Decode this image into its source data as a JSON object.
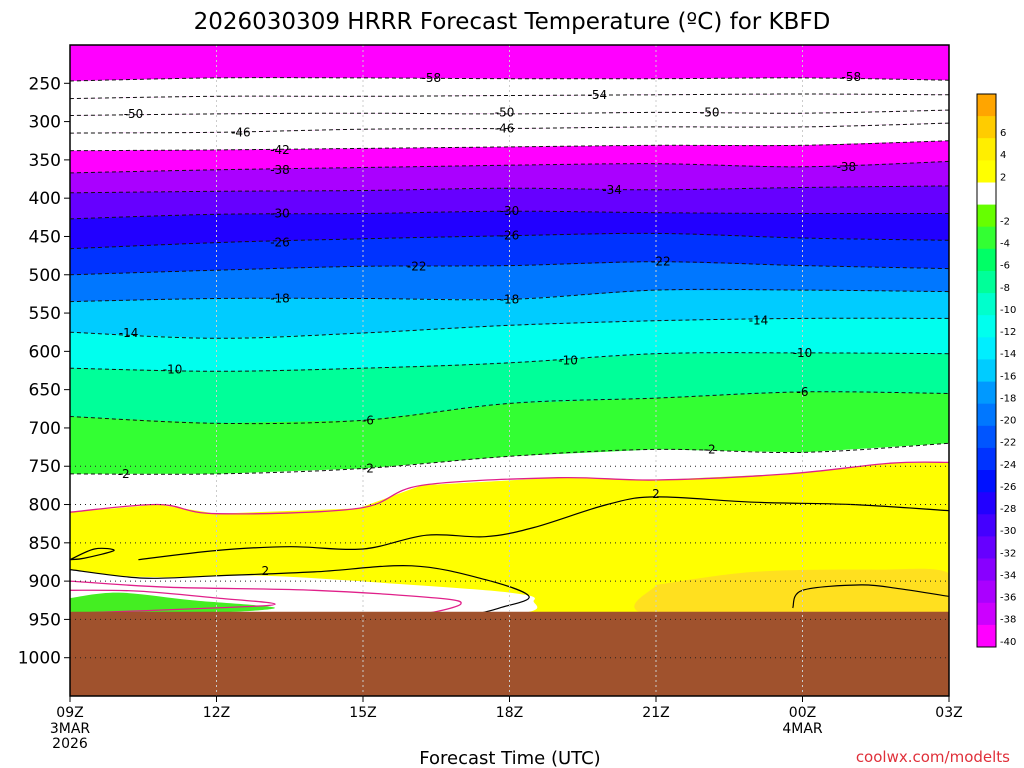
{
  "chart_data": {
    "type": "heatmap",
    "title": "2026030309 HRRR Forecast Temperature (ºC) for KBFD",
    "xlabel": "Forecast Time (UTC)",
    "ylabel": "",
    "credit": "coolwx.com/modelts",
    "credit_color": "#e0303a",
    "x_ticks": [
      {
        "hour": 0,
        "label": "09Z",
        "sub": [
          "3MAR",
          "2026"
        ]
      },
      {
        "hour": 3,
        "label": "12Z",
        "sub": []
      },
      {
        "hour": 6,
        "label": "15Z",
        "sub": []
      },
      {
        "hour": 9,
        "label": "18Z",
        "sub": []
      },
      {
        "hour": 12,
        "label": "21Z",
        "sub": []
      },
      {
        "hour": 15,
        "label": "00Z",
        "sub": [
          "4MAR"
        ]
      },
      {
        "hour": 18,
        "label": "03Z",
        "sub": []
      }
    ],
    "xlim": [
      0,
      18
    ],
    "y_ticks": [
      "250",
      "300",
      "350",
      "400",
      "450",
      "500",
      "550",
      "600",
      "650",
      "700",
      "750",
      "800",
      "850",
      "900",
      "950",
      "1000"
    ],
    "ylim": [
      200,
      1050
    ],
    "ground_pressure": 940,
    "ground_color": "#a0522d",
    "levels": [
      {
        "label": "",
        "color": "#ffa500"
      },
      {
        "label": "6",
        "color": "#ffcc00"
      },
      {
        "label": "4",
        "color": "#ffee00"
      },
      {
        "label": "2",
        "color": "#ffff00"
      },
      {
        "label": "",
        "color": "#ffffff"
      },
      {
        "label": "-2",
        "color": "#66ff00"
      },
      {
        "label": "-4",
        "color": "#33ff33"
      },
      {
        "label": "-6",
        "color": "#00ff66"
      },
      {
        "label": "-8",
        "color": "#00ff99"
      },
      {
        "label": "-10",
        "color": "#00ffcc"
      },
      {
        "label": "-12",
        "color": "#00ffee"
      },
      {
        "label": "-14",
        "color": "#00eeff"
      },
      {
        "label": "-16",
        "color": "#00ccff"
      },
      {
        "label": "-18",
        "color": "#0099ff"
      },
      {
        "label": "-20",
        "color": "#0077ff"
      },
      {
        "label": "-22",
        "color": "#0055ff"
      },
      {
        "label": "-24",
        "color": "#0033ff"
      },
      {
        "label": "-26",
        "color": "#0011ff"
      },
      {
        "label": "-28",
        "color": "#2200ff"
      },
      {
        "label": "-30",
        "color": "#4400ff"
      },
      {
        "label": "-32",
        "color": "#6600ff"
      },
      {
        "label": "-34",
        "color": "#8800ff"
      },
      {
        "label": "-36",
        "color": "#aa00ff"
      },
      {
        "label": "-38",
        "color": "#cc00ff"
      },
      {
        "label": "-40",
        "color": "#ff00ff"
      }
    ],
    "isotherms": [
      {
        "value": -58,
        "hour": [
          0,
          3,
          6,
          9,
          12,
          15,
          18
        ],
        "pressure": [
          247,
          243,
          243,
          244,
          244,
          243,
          246
        ]
      },
      {
        "value": -54,
        "hour": [
          0,
          3,
          6,
          9,
          12,
          15,
          18
        ],
        "pressure": [
          270,
          267,
          267,
          266,
          265,
          264,
          265
        ]
      },
      {
        "value": -50,
        "hour": [
          0,
          3,
          6,
          9,
          12,
          15,
          18
        ],
        "pressure": [
          292,
          290,
          289,
          290,
          288,
          289,
          285
        ]
      },
      {
        "value": -46,
        "hour": [
          0,
          3,
          6,
          9,
          12,
          15,
          18
        ],
        "pressure": [
          315,
          314,
          310,
          309,
          307,
          307,
          302
        ]
      },
      {
        "value": -42,
        "hour": [
          0,
          3,
          6,
          9,
          12,
          15,
          18
        ],
        "pressure": [
          338,
          337,
          335,
          333,
          331,
          331,
          325
        ]
      },
      {
        "value": -38,
        "hour": [
          0,
          3,
          6,
          9,
          12,
          15,
          18
        ],
        "pressure": [
          367,
          363,
          360,
          357,
          355,
          359,
          352
        ]
      },
      {
        "value": -34,
        "hour": [
          0,
          3,
          6,
          9,
          12,
          15,
          18
        ],
        "pressure": [
          393,
          391,
          390,
          387,
          389,
          386,
          384
        ]
      },
      {
        "value": -30,
        "hour": [
          0,
          3,
          6,
          9,
          12,
          15,
          18
        ],
        "pressure": [
          427,
          421,
          420,
          417,
          419,
          420,
          420
        ]
      },
      {
        "value": -26,
        "hour": [
          0,
          3,
          6,
          9,
          12,
          15,
          18
        ],
        "pressure": [
          466,
          458,
          453,
          449,
          446,
          452,
          455
        ]
      },
      {
        "value": -22,
        "hour": [
          0,
          3,
          6,
          9,
          12,
          15,
          18
        ],
        "pressure": [
          500,
          494,
          489,
          488,
          483,
          488,
          492
        ]
      },
      {
        "value": -18,
        "hour": [
          0,
          3,
          6,
          9,
          12,
          15,
          18
        ],
        "pressure": [
          535,
          531,
          531,
          532,
          520,
          520,
          522
        ]
      },
      {
        "value": -14,
        "hour": [
          0,
          3,
          6,
          9,
          12,
          15,
          18
        ],
        "pressure": [
          575,
          583,
          576,
          566,
          560,
          557,
          557
        ]
      },
      {
        "value": -10,
        "hour": [
          0,
          3,
          6,
          9,
          12,
          15,
          18
        ],
        "pressure": [
          622,
          626,
          622,
          615,
          603,
          602,
          603
        ]
      },
      {
        "value": -6,
        "hour": [
          0,
          3,
          6,
          9,
          12,
          15,
          18
        ],
        "pressure": [
          685,
          694,
          690,
          668,
          661,
          653,
          655
        ]
      },
      {
        "value": -2,
        "hour": [
          0,
          3,
          6,
          9,
          12,
          15,
          18
        ],
        "pressure": [
          760,
          760,
          753,
          737,
          728,
          732,
          720
        ]
      }
    ],
    "isotherm_labels": [
      {
        "text": "-58",
        "hour": 7.4,
        "pressure": 243
      },
      {
        "text": "-58",
        "hour": 16.0,
        "pressure": 242
      },
      {
        "text": "-54",
        "hour": 10.8,
        "pressure": 265
      },
      {
        "text": "-50",
        "hour": 1.3,
        "pressure": 290
      },
      {
        "text": "-50",
        "hour": 8.9,
        "pressure": 288
      },
      {
        "text": "-50",
        "hour": 13.1,
        "pressure": 288
      },
      {
        "text": "-46",
        "hour": 3.5,
        "pressure": 314
      },
      {
        "text": "-46",
        "hour": 8.9,
        "pressure": 309
      },
      {
        "text": "-42",
        "hour": 4.3,
        "pressure": 337
      },
      {
        "text": "-38",
        "hour": 4.3,
        "pressure": 363
      },
      {
        "text": "-38",
        "hour": 15.9,
        "pressure": 359
      },
      {
        "text": "-34",
        "hour": 11.1,
        "pressure": 389
      },
      {
        "text": "-30",
        "hour": 4.3,
        "pressure": 420
      },
      {
        "text": "-30",
        "hour": 9.0,
        "pressure": 417
      },
      {
        "text": "-26",
        "hour": 4.3,
        "pressure": 458
      },
      {
        "text": "-26",
        "hour": 9.0,
        "pressure": 449
      },
      {
        "text": "-22",
        "hour": 7.1,
        "pressure": 489
      },
      {
        "text": "-22",
        "hour": 12.1,
        "pressure": 483
      },
      {
        "text": "-18",
        "hour": 4.3,
        "pressure": 531
      },
      {
        "text": "-18",
        "hour": 9.0,
        "pressure": 532
      },
      {
        "text": "-14",
        "hour": 1.2,
        "pressure": 576
      },
      {
        "text": "-14",
        "hour": 14.1,
        "pressure": 560
      },
      {
        "text": "-10",
        "hour": 2.1,
        "pressure": 624
      },
      {
        "text": "-10",
        "hour": 10.2,
        "pressure": 612
      },
      {
        "text": "-10",
        "hour": 15.0,
        "pressure": 602
      },
      {
        "text": "-6",
        "hour": 6.1,
        "pressure": 690
      },
      {
        "text": "-6",
        "hour": 15.0,
        "pressure": 653
      },
      {
        "text": "-2",
        "hour": 1.1,
        "pressure": 760
      },
      {
        "text": "-2",
        "hour": 6.1,
        "pressure": 753
      },
      {
        "text": "-2",
        "hour": 13.1,
        "pressure": 728
      }
    ],
    "freezing_line": {
      "value": 0,
      "color": "#e0208a"
    },
    "positive_labels": [
      {
        "text": "2",
        "hour": 12.0,
        "pressure": 786
      },
      {
        "text": "2",
        "hour": 4.0,
        "pressure": 887
      }
    ]
  }
}
